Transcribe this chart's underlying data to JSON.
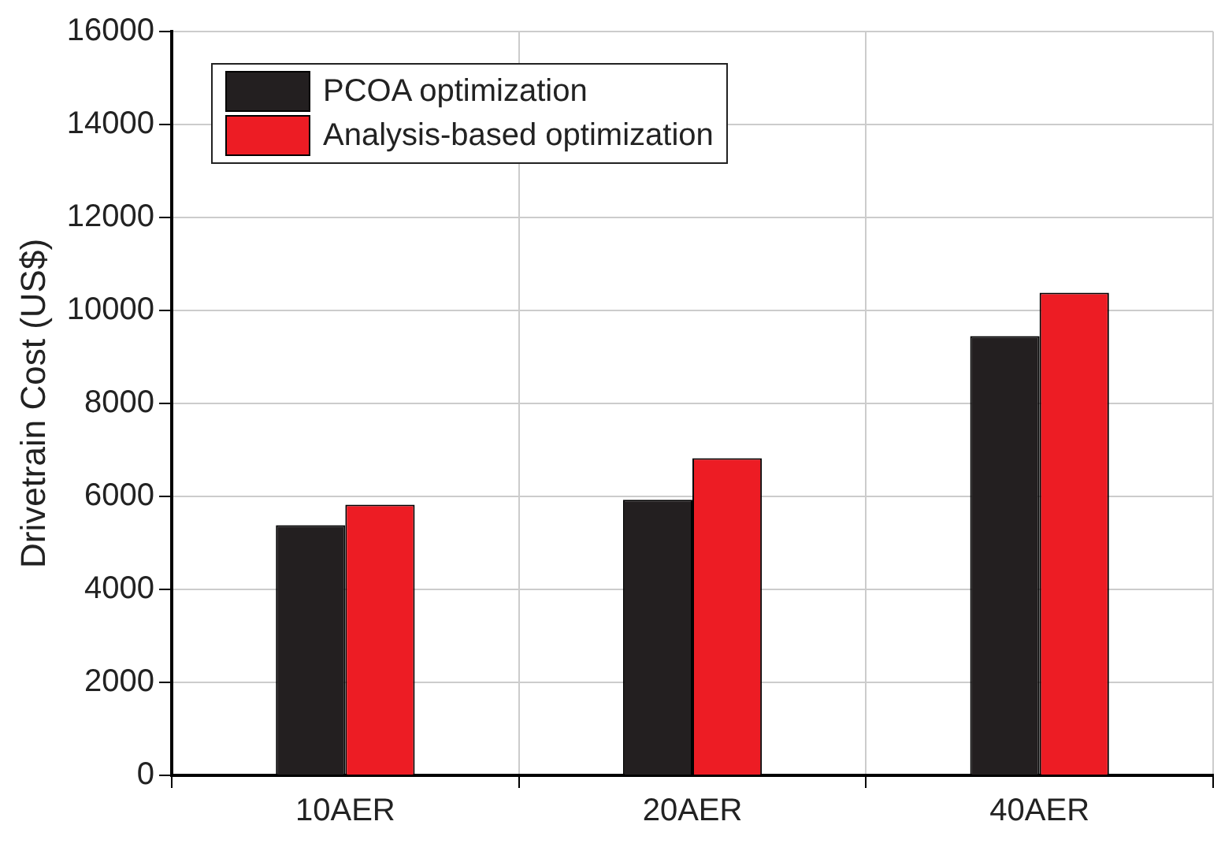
{
  "chart_data": {
    "type": "bar",
    "ylabel": "Drivetrain Cost (US$)",
    "categories": [
      "10AER",
      "20AER",
      "40AER"
    ],
    "series": [
      {
        "name": "PCOA optimization",
        "color": "#231f20",
        "values": [
          5380,
          5930,
          9450
        ]
      },
      {
        "name": "Analysis-based optimization",
        "color": "#ed1c24",
        "values": [
          5820,
          6820,
          10380
        ]
      }
    ],
    "ylim": [
      0,
      16000
    ],
    "yticks": [
      0,
      2000,
      4000,
      6000,
      8000,
      10000,
      12000,
      14000,
      16000
    ],
    "grid": true,
    "legend": "top left"
  }
}
